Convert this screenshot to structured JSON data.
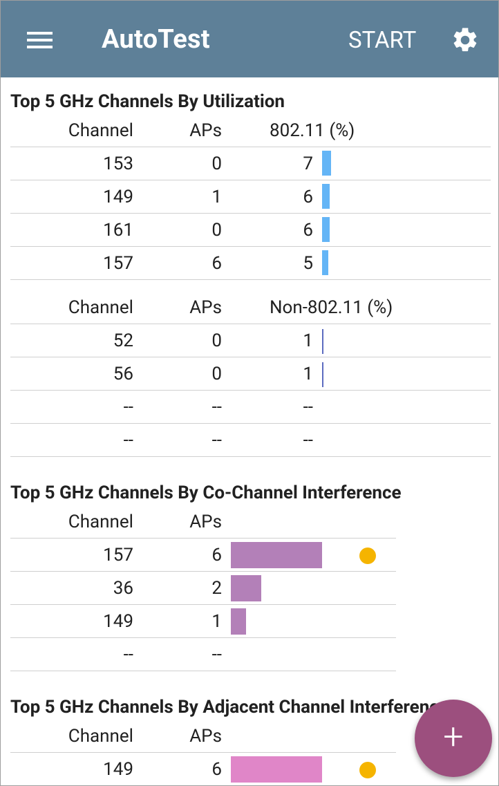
{
  "app": {
    "title": "AutoTest",
    "start_label": "START",
    "menu_icon": "hamburger-menu-icon",
    "settings_icon": "gear-icon"
  },
  "utilization": {
    "title": "Top 5 GHz Channels By Utilization",
    "h_channel": "Channel",
    "h_aps": "APs",
    "h_80211": "802.11 (%)",
    "rows_80211": [
      {
        "channel": "153",
        "aps": "0",
        "pct": "7"
      },
      {
        "channel": "149",
        "aps": "1",
        "pct": "6"
      },
      {
        "channel": "161",
        "aps": "0",
        "pct": "6"
      },
      {
        "channel": "157",
        "aps": "6",
        "pct": "5"
      }
    ],
    "h_non80211": "Non-802.11 (%)",
    "rows_non80211": [
      {
        "channel": "52",
        "aps": "0",
        "pct": "1"
      },
      {
        "channel": "56",
        "aps": "0",
        "pct": "1"
      },
      {
        "channel": "--",
        "aps": "--",
        "pct": "--"
      },
      {
        "channel": "--",
        "aps": "--",
        "pct": "--"
      }
    ]
  },
  "cochannel": {
    "title": "Top 5 GHz Channels By Co-Channel Interference",
    "h_channel": "Channel",
    "h_aps": "APs",
    "rows": [
      {
        "channel": "157",
        "aps": "6",
        "warning": true
      },
      {
        "channel": "36",
        "aps": "2",
        "warning": false
      },
      {
        "channel": "149",
        "aps": "1",
        "warning": false
      },
      {
        "channel": "--",
        "aps": "--",
        "warning": false
      }
    ]
  },
  "adjacent": {
    "title": "Top 5 GHz Channels By Adjacent Channel Interference",
    "h_channel": "Channel",
    "h_aps": "APs",
    "rows": [
      {
        "channel": "149",
        "aps": "6",
        "warning": true
      }
    ]
  },
  "fab_label": "+",
  "colors": {
    "appbar": "#5e8098",
    "util_bar": "#64b5f6",
    "non80211_bar": "#5c6bc0",
    "cochannel_bar": "#b380b8",
    "adjacent_bar": "#e086c8",
    "warning_dot": "#f5b400",
    "fab": "#9c4f7e"
  }
}
